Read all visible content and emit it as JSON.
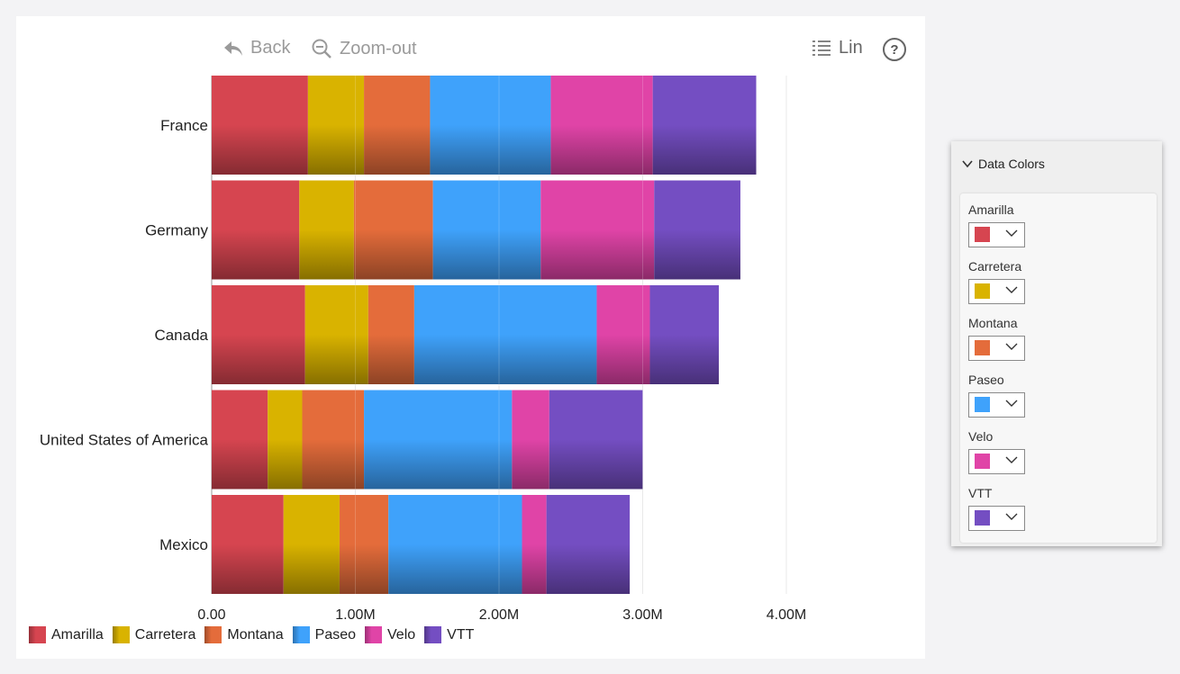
{
  "toolbar": {
    "back_label": "Back",
    "zoomout_label": "Zoom-out",
    "scale_label": "Lin",
    "help_label": "?"
  },
  "chart_data": {
    "type": "bar",
    "orientation": "horizontal",
    "stacked": true,
    "categories": [
      "France",
      "Germany",
      "Canada",
      "United States of America",
      "Mexico"
    ],
    "series": [
      {
        "name": "Amarilla",
        "color": "#d64550",
        "values": [
          670000,
          610000,
          650000,
          390000,
          500000
        ]
      },
      {
        "name": "Carretera",
        "color": "#d9b300",
        "values": [
          390000,
          380000,
          440000,
          240000,
          390000
        ]
      },
      {
        "name": "Montana",
        "color": "#e46c3b",
        "values": [
          460000,
          550000,
          320000,
          430000,
          340000
        ]
      },
      {
        "name": "Paseo",
        "color": "#3fa2fb",
        "values": [
          840000,
          750000,
          1270000,
          1030000,
          930000
        ]
      },
      {
        "name": "Velo",
        "color": "#e044a7",
        "values": [
          710000,
          790000,
          370000,
          260000,
          170000
        ]
      },
      {
        "name": "VTT",
        "color": "#744ec2",
        "values": [
          720000,
          600000,
          480000,
          650000,
          580000
        ]
      }
    ],
    "xlim": [
      0,
      4000000
    ],
    "xticks": [
      {
        "value": 0,
        "label": "0.00"
      },
      {
        "value": 1000000,
        "label": "1.00M"
      },
      {
        "value": 2000000,
        "label": "2.00M"
      },
      {
        "value": 3000000,
        "label": "3.00M"
      },
      {
        "value": 4000000,
        "label": "4.00M"
      }
    ],
    "grid": true,
    "legend_position": "bottom-left"
  },
  "panel": {
    "title": "Data Colors",
    "items": [
      {
        "label": "Amarilla",
        "color": "#d64550"
      },
      {
        "label": "Carretera",
        "color": "#d9b300"
      },
      {
        "label": "Montana",
        "color": "#e46c3b"
      },
      {
        "label": "Paseo",
        "color": "#3fa2fb"
      },
      {
        "label": "Velo",
        "color": "#e044a7"
      },
      {
        "label": "VTT",
        "color": "#744ec2"
      }
    ]
  }
}
